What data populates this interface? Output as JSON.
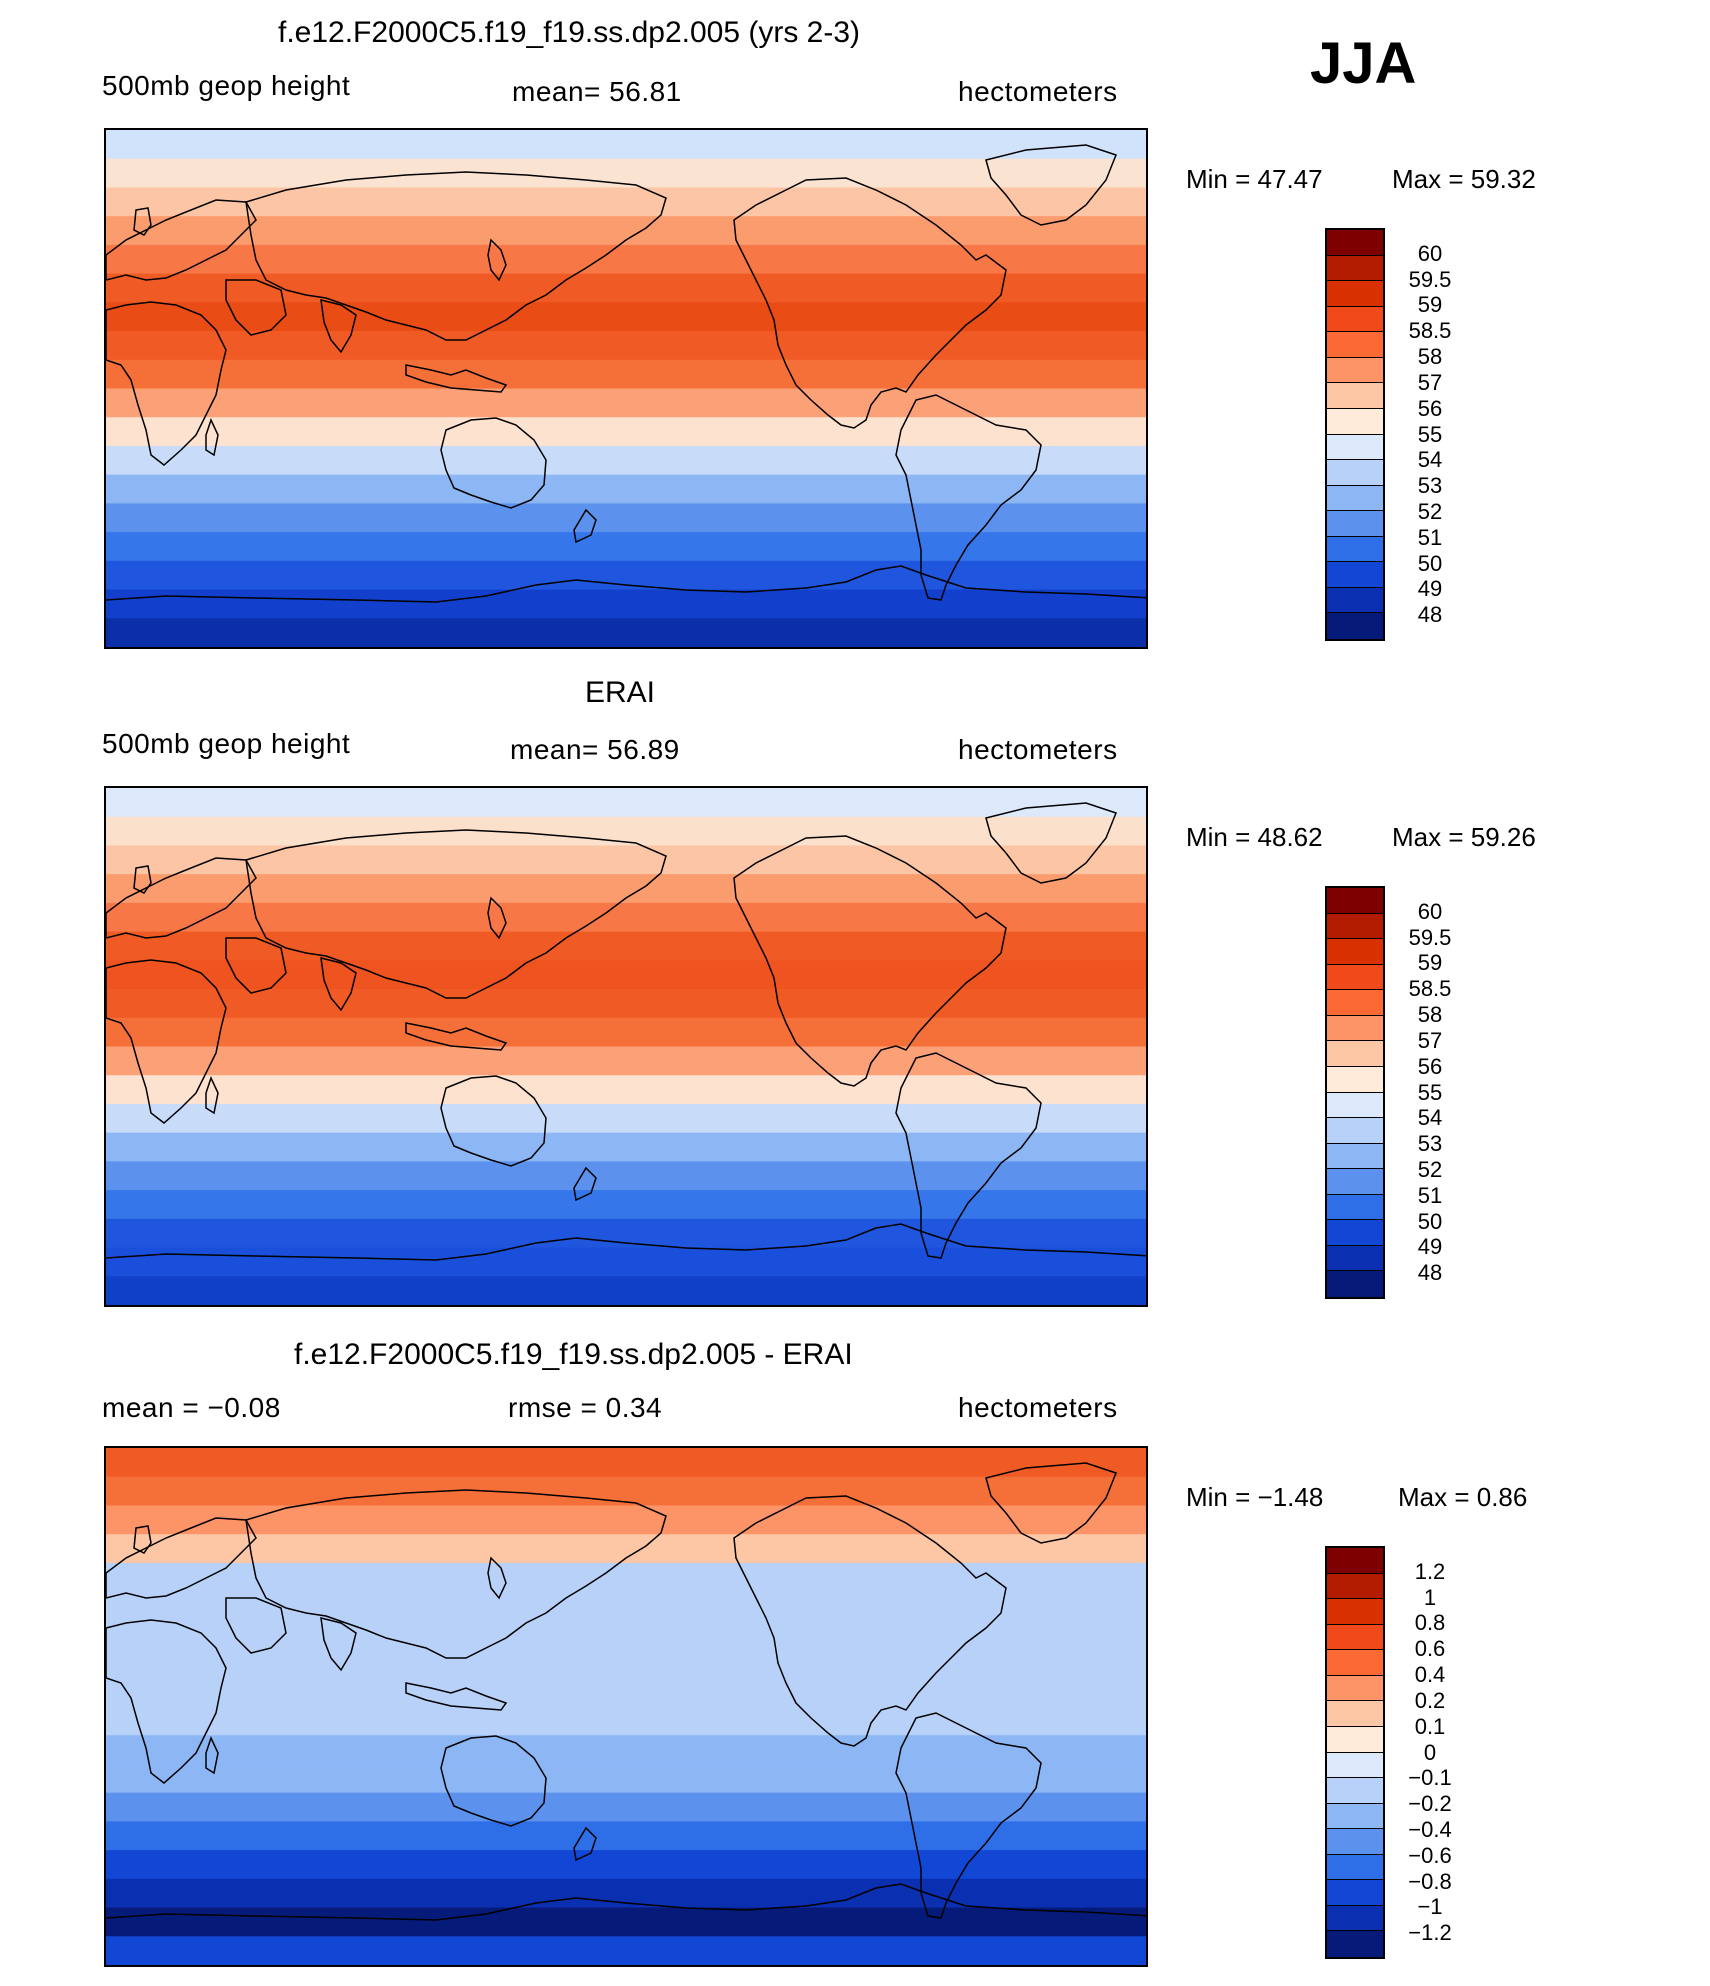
{
  "season": "JJA",
  "panels": [
    {
      "title": "f.e12.F2000C5.f19_f19.ss.dp2.005 (yrs 2-3)",
      "left_label": "500mb  geop  height",
      "mean_label": "mean=   56.81",
      "units": "hectometers",
      "min_label": "Min  =    47.47",
      "max_label": "Max  =    59.32",
      "levels": [
        "60",
        "59.5",
        "59",
        "58.5",
        "58",
        "57",
        "56",
        "55",
        "54",
        "53",
        "52",
        "51",
        "50",
        "49",
        "48"
      ],
      "colors": [
        "#7f0000",
        "#b31b00",
        "#d93000",
        "#f04a1a",
        "#fb6a35",
        "#fc9468",
        "#fdc6a4",
        "#feebd9",
        "#dbe9fb",
        "#b8d1f8",
        "#8db6f5",
        "#5c92ee",
        "#2e6ee6",
        "#1247d6",
        "#0a2fb0",
        "#061a7a"
      ],
      "lat_colors": [
        "#d0e3fb",
        "#fbe3d2",
        "#fcc6a6",
        "#fb9c6e",
        "#f77746",
        "#f05a24",
        "#ea4c16",
        "#f05a24",
        "#f57039",
        "#fca078",
        "#fde2cf",
        "#c8dcfa",
        "#8db6f5",
        "#5c92ee",
        "#3576ea",
        "#1f56dd",
        "#1240cc",
        "#0a2fa8"
      ]
    },
    {
      "title": "ERAI",
      "left_label": "500mb  geop  height",
      "mean_label": "mean=   56.89",
      "units": "hectometers",
      "min_label": "Min  =    48.62",
      "max_label": "Max  =    59.26",
      "levels": [
        "60",
        "59.5",
        "59",
        "58.5",
        "58",
        "57",
        "56",
        "55",
        "54",
        "53",
        "52",
        "51",
        "50",
        "49",
        "48"
      ],
      "colors": [
        "#7f0000",
        "#b31b00",
        "#d93000",
        "#f04a1a",
        "#fb6a35",
        "#fc9468",
        "#fdc6a4",
        "#feebd9",
        "#dbe9fb",
        "#b8d1f8",
        "#8db6f5",
        "#5c92ee",
        "#2e6ee6",
        "#1247d6",
        "#0a2fb0",
        "#061a7a"
      ],
      "lat_colors": [
        "#dbe9fb",
        "#fbe0cc",
        "#fcc6a6",
        "#fb9c6e",
        "#f77746",
        "#f05a24",
        "#ee5320",
        "#f05a24",
        "#f57039",
        "#fca078",
        "#fde2cf",
        "#c8dcfa",
        "#8db6f5",
        "#5c92ee",
        "#3576ea",
        "#1f56dd",
        "#1a4fdc",
        "#1040c8"
      ]
    },
    {
      "title": "f.e12.F2000C5.f19_f19.ss.dp2.005 - ERAI",
      "left_label": "mean  =    −0.08",
      "mean_label": "rmse  =     0.34",
      "units": "hectometers",
      "min_label": "Min  =    −1.48",
      "max_label": "Max  =      0.86",
      "levels": [
        "1.2",
        "1",
        "0.8",
        "0.6",
        "0.4",
        "0.2",
        "0.1",
        "0",
        "−0.1",
        "−0.2",
        "−0.4",
        "−0.6",
        "−0.8",
        "−1",
        "−1.2"
      ],
      "colors": [
        "#7f0000",
        "#b31b00",
        "#d93000",
        "#f04a1a",
        "#fb6a35",
        "#fc9468",
        "#fdc6a4",
        "#feebd9",
        "#dbe9fb",
        "#b8d1f8",
        "#8db6f5",
        "#5c92ee",
        "#2e6ee6",
        "#1247d6",
        "#0a2fb0",
        "#061a7a"
      ],
      "lat_colors": [
        "#f05a24",
        "#f57039",
        "#fc9468",
        "#fdc6a4",
        "#b8d1f8",
        "#b8d1f8",
        "#b8d1f8",
        "#b8d1f8",
        "#b8d1f8",
        "#b8d1f8",
        "#8db6f5",
        "#8db6f5",
        "#5c92ee",
        "#2e6ee6",
        "#1247d6",
        "#0a2fb0",
        "#061a7a",
        "#1247d6"
      ]
    }
  ]
}
